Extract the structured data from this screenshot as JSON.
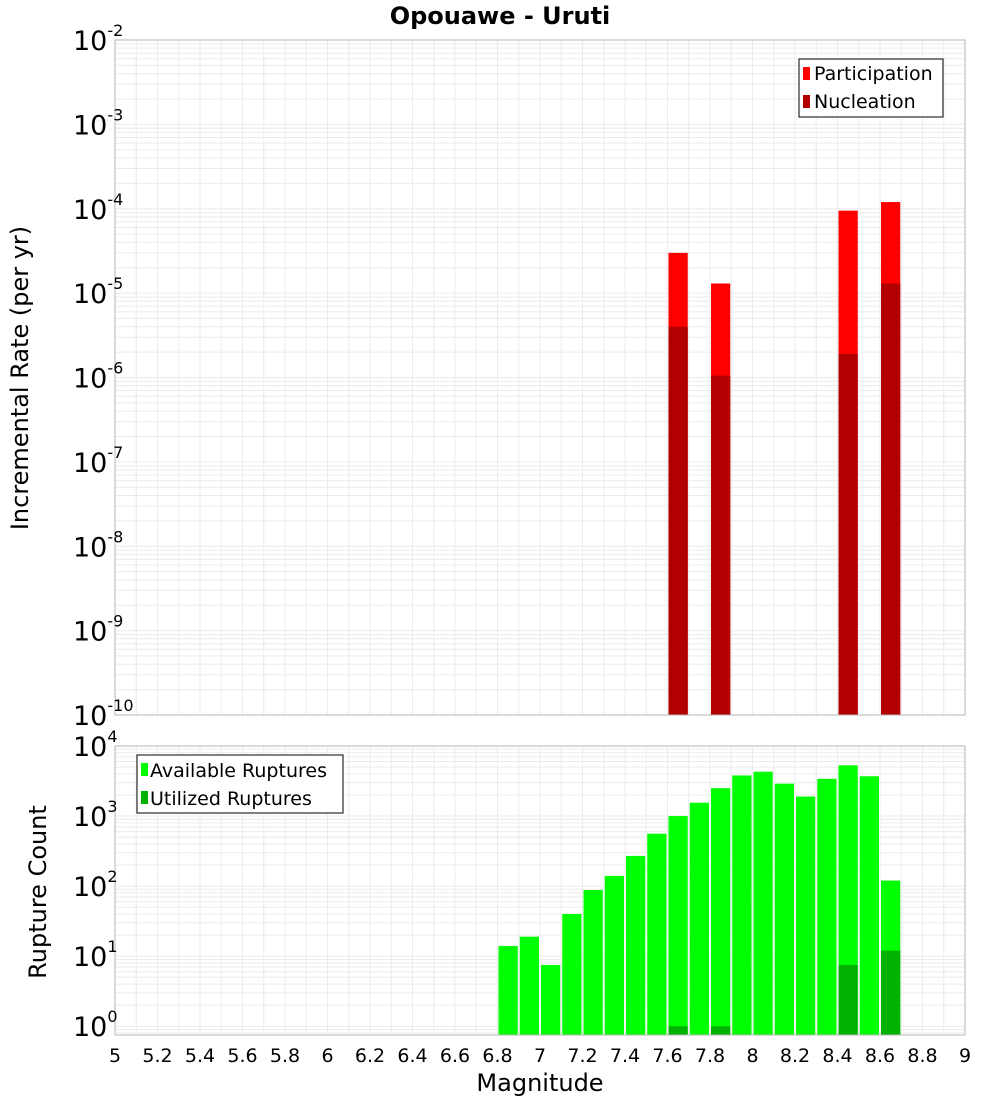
{
  "title": "Opouawe - Uruti",
  "colors": {
    "participation": "#ff0000",
    "nucleation": "#b20000",
    "available": "#00ff00",
    "utilized": "#00b200",
    "grid": "#ebebeb",
    "frame": "#b4b4b4"
  },
  "chart_data": [
    {
      "type": "bar",
      "ylabel": "Incremental Rate (per yr)",
      "yscale": "log",
      "ylim": [
        1e-10,
        0.01
      ],
      "xlim": [
        5,
        9
      ],
      "yticks": [
        {
          "base": "10",
          "exp": "-10",
          "value": 1e-10
        },
        {
          "base": "10",
          "exp": "-9",
          "value": 1e-09
        },
        {
          "base": "10",
          "exp": "-8",
          "value": 1e-08
        },
        {
          "base": "10",
          "exp": "-7",
          "value": 1e-07
        },
        {
          "base": "10",
          "exp": "-6",
          "value": 1e-06
        },
        {
          "base": "10",
          "exp": "-5",
          "value": 1e-05
        },
        {
          "base": "10",
          "exp": "-4",
          "value": 0.0001
        },
        {
          "base": "10",
          "exp": "-3",
          "value": 0.001
        },
        {
          "base": "10",
          "exp": "-2",
          "value": 0.01
        }
      ],
      "legend_position": "top-right",
      "series": [
        {
          "name": "Participation",
          "color": "#ff0000",
          "x": [
            7.65,
            7.85,
            8.45,
            8.65
          ],
          "values": [
            3e-05,
            1.3e-05,
            9.5e-05,
            0.00012
          ]
        },
        {
          "name": "Nucleation",
          "color": "#b20000",
          "x": [
            7.65,
            7.85,
            8.45,
            8.65
          ],
          "values": [
            4e-06,
            1.05e-06,
            1.9e-06,
            1.3e-05
          ]
        }
      ]
    },
    {
      "type": "bar",
      "ylabel": "Rupture Count",
      "xlabel": "Magnitude",
      "yscale": "log",
      "ylim": [
        0.75,
        10000
      ],
      "xlim": [
        5,
        9
      ],
      "yticks": [
        {
          "base": "10",
          "exp": "0",
          "value": 1
        },
        {
          "base": "10",
          "exp": "1",
          "value": 10
        },
        {
          "base": "10",
          "exp": "2",
          "value": 100
        },
        {
          "base": "10",
          "exp": "3",
          "value": 1000
        },
        {
          "base": "10",
          "exp": "4",
          "value": 10000
        }
      ],
      "xticks": [
        "5",
        "5.2",
        "5.4",
        "5.6",
        "5.8",
        "6",
        "6.2",
        "6.4",
        "6.6",
        "6.8",
        "7",
        "7.2",
        "7.4",
        "7.6",
        "7.8",
        "8",
        "8.2",
        "8.4",
        "8.6",
        "8.8",
        "9"
      ],
      "legend_position": "top-left",
      "series": [
        {
          "name": "Available Ruptures",
          "color": "#00ff00",
          "x": [
            6.85,
            6.95,
            7.05,
            7.15,
            7.25,
            7.35,
            7.45,
            7.55,
            7.65,
            7.75,
            7.85,
            7.95,
            8.05,
            8.15,
            8.25,
            8.35,
            8.45,
            8.55,
            8.65
          ],
          "values": [
            14,
            19,
            7.5,
            40,
            88,
            140,
            270,
            560,
            1000,
            1550,
            2500,
            3800,
            4300,
            2900,
            1900,
            3400,
            5300,
            3700,
            120
          ]
        },
        {
          "name": "Utilized Ruptures",
          "color": "#00b200",
          "x": [
            7.65,
            7.85,
            8.45,
            8.65
          ],
          "values": [
            1,
            1,
            7.5,
            12
          ]
        }
      ]
    }
  ]
}
